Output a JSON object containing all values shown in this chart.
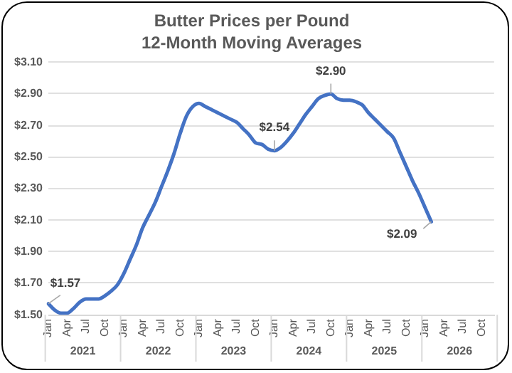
{
  "chart_data": {
    "type": "line",
    "title": "Butter Prices per Pound",
    "subtitle": "12-Month Moving Averages",
    "categories": [
      "Jan",
      null,
      null,
      "Apr",
      null,
      null,
      "Jul",
      null,
      null,
      "Oct",
      null,
      null,
      "Jan",
      null,
      null,
      "Apr",
      null,
      null,
      "Jul",
      null,
      null,
      "Oct",
      null,
      null,
      "Jan",
      null,
      null,
      "Apr",
      null,
      null,
      "Jul",
      null,
      null,
      "Oct",
      null,
      null,
      "Jan",
      null,
      null,
      "Apr",
      null,
      null,
      "Jul",
      null,
      null,
      "Oct",
      null,
      null,
      "Jan",
      null,
      null,
      "Apr",
      null,
      null,
      "Jul",
      null,
      null,
      "Oct",
      null,
      null,
      "Jan",
      null,
      null,
      "Apr",
      null,
      null,
      "Jul",
      null,
      null,
      "Oct",
      null,
      null
    ],
    "series": [
      {
        "color": "#4472c4",
        "values": [
          1.57,
          1.53,
          1.51,
          1.51,
          1.54,
          1.58,
          1.6,
          1.6,
          1.6,
          1.62,
          1.65,
          1.69,
          1.76,
          1.85,
          1.94,
          2.05,
          2.13,
          2.21,
          2.31,
          2.41,
          2.52,
          2.65,
          2.76,
          2.82,
          2.84,
          2.82,
          2.8,
          2.78,
          2.76,
          2.74,
          2.72,
          2.68,
          2.64,
          2.59,
          2.58,
          2.55,
          2.54,
          2.56,
          2.6,
          2.65,
          2.71,
          2.77,
          2.82,
          2.87,
          2.89,
          2.9,
          2.87,
          2.86,
          2.86,
          2.85,
          2.83,
          2.78,
          2.74,
          2.7,
          2.66,
          2.62,
          2.53,
          2.44,
          2.35,
          2.27,
          2.18,
          2.09,
          null,
          null,
          null,
          null,
          null,
          null,
          null,
          null,
          null,
          null
        ],
        "value_labels": [
          "$1.57",
          null,
          null,
          null,
          null,
          null,
          null,
          null,
          null,
          null,
          null,
          null,
          null,
          null,
          null,
          null,
          null,
          null,
          null,
          null,
          null,
          null,
          null,
          null,
          null,
          null,
          null,
          null,
          null,
          null,
          null,
          null,
          null,
          null,
          null,
          null,
          "$2.54",
          null,
          null,
          null,
          null,
          null,
          null,
          null,
          null,
          "$2.90",
          null,
          null,
          null,
          null,
          null,
          null,
          null,
          null,
          null,
          null,
          null,
          null,
          null,
          null,
          null,
          "$2.09",
          null,
          null,
          null,
          null,
          null,
          null,
          null,
          null,
          null,
          null
        ]
      }
    ],
    "annotations": [
      "2021",
      "2022",
      "2023",
      "2024",
      "2025",
      "2026"
    ],
    "ylim": [
      1.5,
      3.1
    ],
    "yticks": [
      {
        "value": 1.5,
        "label": "$1.50"
      },
      {
        "value": 1.7,
        "label": "$1.70"
      },
      {
        "value": 1.9,
        "label": "$1.90"
      },
      {
        "value": 2.1,
        "label": "$2.10"
      },
      {
        "value": 2.3,
        "label": "$2.30"
      },
      {
        "value": 2.5,
        "label": "$2.50"
      },
      {
        "value": 2.7,
        "label": "$2.70"
      },
      {
        "value": 2.9,
        "label": "$2.90"
      },
      {
        "value": 3.1,
        "label": "$3.10"
      }
    ],
    "grid": "y",
    "legend": false,
    "marker": "none",
    "line_style": "solid"
  }
}
